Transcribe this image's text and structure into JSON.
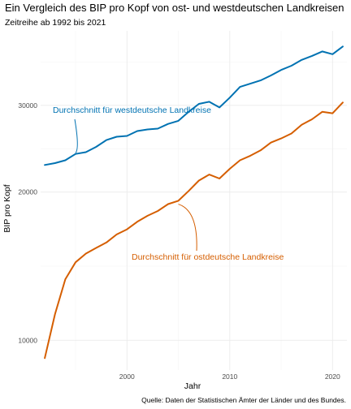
{
  "chart_data": {
    "type": "line",
    "title": "Ein Vergleich des BIP pro Kopf von ost- und westdeutschen Landkreisen",
    "subtitle": "Zeitreihe ab 1992 bis 2021",
    "xlabel": "Jahr",
    "ylabel": "BIP pro Kopf",
    "caption": "Quelle: Daten der Statistischen Ämter der Länder und des Bundes.",
    "x_ticks": [
      2000,
      2010,
      2020
    ],
    "y_ticks": [
      10000,
      20000,
      30000
    ],
    "y_scale": "log",
    "xlim": [
      1991.6,
      2021.4
    ],
    "ylim": [
      8700,
      42500
    ],
    "grid": true,
    "x": [
      1992,
      1993,
      1994,
      1995,
      1996,
      1997,
      1998,
      1999,
      2000,
      2001,
      2002,
      2003,
      2004,
      2005,
      2006,
      2007,
      2008,
      2009,
      2010,
      2011,
      2012,
      2013,
      2014,
      2015,
      2016,
      2017,
      2018,
      2019,
      2020,
      2021
    ],
    "series": [
      {
        "name": "Durchschnitt für westdeutsche Landkreise",
        "color": "#0072B2",
        "values": [
          22700,
          22900,
          23200,
          23900,
          24100,
          24700,
          25500,
          25900,
          26000,
          26600,
          26800,
          26900,
          27500,
          27900,
          29100,
          30200,
          30500,
          29700,
          31100,
          32700,
          33200,
          33700,
          34500,
          35400,
          36100,
          37100,
          37800,
          38600,
          38100,
          39500
        ]
      },
      {
        "name": "Durchschnitt für ostdeutsche Landkreise",
        "color": "#D55E00",
        "values": [
          9200,
          11300,
          13300,
          14400,
          15000,
          15400,
          15800,
          16400,
          16800,
          17400,
          17900,
          18300,
          18900,
          19200,
          20100,
          21100,
          21700,
          21300,
          22300,
          23200,
          23700,
          24300,
          25200,
          25700,
          26300,
          27400,
          28100,
          29100,
          28900,
          30400
        ]
      }
    ],
    "annotations": [
      {
        "text": "Durchschnitt für westdeutsche Landkreise",
        "series": 0,
        "color": "#0072B2",
        "x": 1995,
        "y": 24000
      },
      {
        "text": "Durchschnitt für ostdeutsche Landkreise",
        "series": 1,
        "color": "#D55E00",
        "x": 2005,
        "y": 18900
      }
    ]
  }
}
